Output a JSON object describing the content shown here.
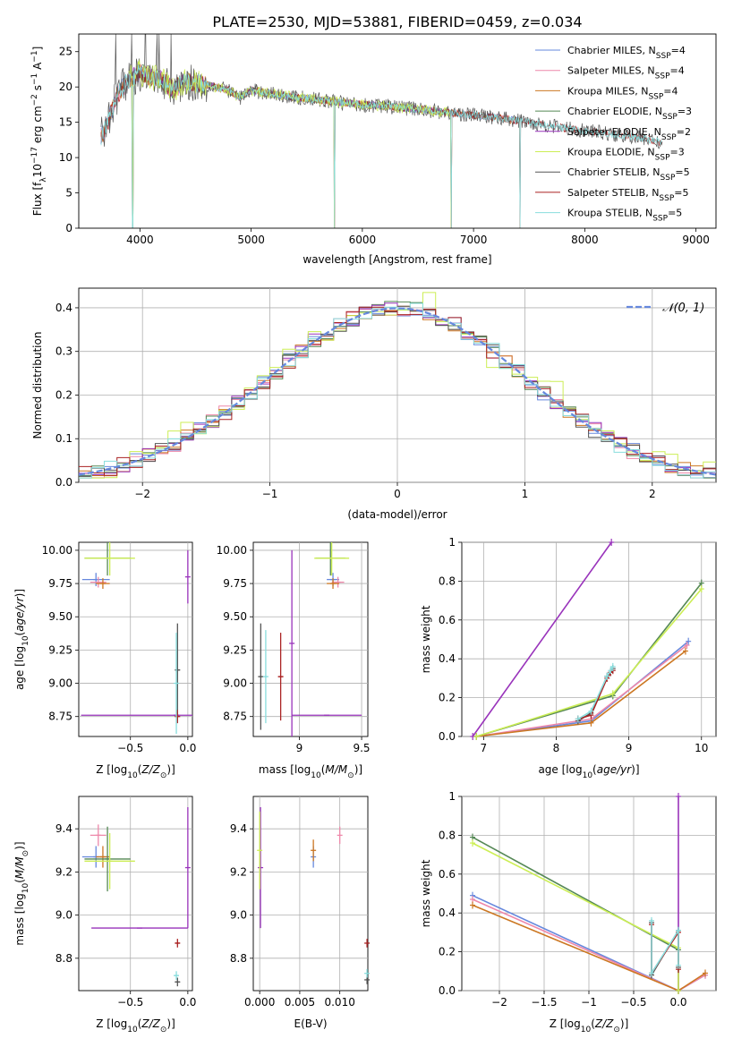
{
  "figure": {
    "title": "PLATE=2530, MJD=53881, FIBERID=0459, z=0.034"
  },
  "colors": {
    "Chabrier MILES": "#6688dd",
    "Salpeter MILES": "#ee88aa",
    "Kroupa MILES": "#cc7722",
    "Chabrier ELODIE": "#558855",
    "Salpeter ELODIE": "#9933bb",
    "Kroupa ELODIE": "#ccee55",
    "Chabrier STELIB": "#555555",
    "Salpeter STELIB": "#aa2222",
    "Kroupa STELIB": "#88dddd",
    "normal": "#6688dd"
  },
  "chart_data": [
    {
      "id": "spectrum",
      "type": "line",
      "title": "PLATE=2530, MJD=53881, FIBERID=0459, z=0.034",
      "xlabel": "wavelength [Angstrom, rest frame]",
      "ylabel": "Flux [f_λ 10^-17 erg cm^-2 s^-1 A^-1]",
      "xlim": [
        3450,
        9180
      ],
      "ylim": [
        0,
        27.5
      ],
      "xticks": [
        4000,
        5000,
        6000,
        7000,
        8000,
        9000
      ],
      "yticks": [
        0,
        5,
        10,
        15,
        20,
        25
      ],
      "grid": false,
      "legend_position": "top-right",
      "series": [
        {
          "name": "Chabrier MILES, N_SSP=4",
          "x_range": [
            3650,
            7400
          ]
        },
        {
          "name": "Salpeter MILES, N_SSP=4",
          "x_range": [
            3650,
            7400
          ]
        },
        {
          "name": "Kroupa MILES, N_SSP=4",
          "x_range": [
            3650,
            7420
          ]
        },
        {
          "name": "Chabrier ELODIE, N_SSP=3",
          "x_range": [
            3900,
            6800
          ]
        },
        {
          "name": "Salpeter ELODIE, N_SSP=2",
          "x_range": [
            3900,
            6800
          ]
        },
        {
          "name": "Kroupa ELODIE, N_SSP=3",
          "x_range": [
            3900,
            6800
          ]
        },
        {
          "name": "Chabrier STELIB, N_SSP=5",
          "x_range": [
            3650,
            8700
          ]
        },
        {
          "name": "Salpeter STELIB, N_SSP=5",
          "x_range": [
            3650,
            8700
          ]
        },
        {
          "name": "Kroupa STELIB, N_SSP=5",
          "x_range": [
            3650,
            8700
          ]
        }
      ],
      "continuum": {
        "x": [
          3650,
          3700,
          3800,
          3900,
          4000,
          4100,
          4200,
          4300,
          4400,
          4600,
          4800,
          4900,
          5000,
          5200,
          5400,
          5600,
          5800,
          6000,
          6200,
          6400,
          6600,
          6800,
          7000,
          7200,
          7400,
          7600,
          7800,
          8000,
          8200,
          8400,
          8600,
          8700
        ],
        "y": [
          13.0,
          14.5,
          19.0,
          21.0,
          22.0,
          21.5,
          21.0,
          19.5,
          20.8,
          20.3,
          19.5,
          18.5,
          19.5,
          19.0,
          18.5,
          18.2,
          17.8,
          17.5,
          17.3,
          17.0,
          16.7,
          16.3,
          16.0,
          15.7,
          15.2,
          14.8,
          14.2,
          13.8,
          13.4,
          13.0,
          12.5,
          12.0
        ]
      },
      "dips": [
        {
          "x": 3935,
          "y": 0.0
        },
        {
          "x": 5750,
          "y": 0.0
        },
        {
          "x": 6800,
          "y": 0.0
        },
        {
          "x": 7420,
          "y": 0.0
        }
      ]
    },
    {
      "id": "residuals",
      "type": "line",
      "xlabel": "(data-model)/error",
      "ylabel": "Normed distribution",
      "xlim": [
        -2.5,
        2.5
      ],
      "ylim": [
        0,
        0.445
      ],
      "xticks": [
        -2,
        -1,
        0,
        1,
        2
      ],
      "yticks": [
        0.0,
        0.1,
        0.2,
        0.3,
        0.4
      ],
      "grid": true,
      "legend_position": "top-right",
      "legend": "𝒩(0, 1)",
      "normal_curve": {
        "mu": 0,
        "sigma": 1
      },
      "bins": {
        "start": -2.5,
        "width": 0.1
      }
    },
    {
      "id": "age-vs-Z",
      "type": "scatter",
      "xlabel": "Z [log10(Z/Z⊙)]",
      "ylabel": "age [log10(age/yr)]",
      "xlim": [
        -0.95,
        0.04
      ],
      "ylim": [
        8.6,
        10.06
      ],
      "xticks": [
        -0.5,
        0.0
      ],
      "yticks": [
        8.75,
        9.0,
        9.25,
        9.5,
        9.75,
        10.0
      ],
      "grid": true,
      "points": [
        {
          "series": "Chabrier MILES",
          "x": -0.8,
          "y": 9.78,
          "xerr": 0.12,
          "yerr": 0.05
        },
        {
          "series": "Salpeter MILES",
          "x": -0.78,
          "y": 9.76,
          "xerr": 0.07,
          "yerr": 0.04
        },
        {
          "series": "Kroupa MILES",
          "x": -0.74,
          "y": 9.75,
          "xerr": 0.06,
          "yerr": 0.04
        },
        {
          "series": "Chabrier ELODIE",
          "x": -0.7,
          "y": 9.94,
          "xerr": 0.2,
          "yerr": 0.13
        },
        {
          "series": "Salpeter ELODIE",
          "x": -0.1,
          "y": 8.76,
          "xerr": 0.83,
          "yerr": 0.0
        },
        {
          "series": "Salpeter ELODIE",
          "x": 0.0,
          "y": 9.8,
          "xerr": 0.0,
          "yerr": 0.2
        },
        {
          "series": "Kroupa ELODIE",
          "x": -0.68,
          "y": 9.94,
          "xerr": 0.22,
          "yerr": 0.13
        },
        {
          "series": "Chabrier STELIB",
          "x": -0.09,
          "y": 9.1,
          "xerr": 0.02,
          "yerr": 0.35
        },
        {
          "series": "Salpeter STELIB",
          "x": -0.09,
          "y": 8.75,
          "xerr": 0.01,
          "yerr": 0.05
        },
        {
          "series": "Kroupa STELIB",
          "x": -0.1,
          "y": 9.0,
          "xerr": 0.01,
          "yerr": 0.38
        }
      ]
    },
    {
      "id": "age-vs-mass",
      "type": "scatter",
      "xlabel": "mass [log10(M/M⊙)]",
      "ylabel": "",
      "xlim": [
        8.63,
        9.55
      ],
      "ylim": [
        8.6,
        10.06
      ],
      "xticks": [
        9.0,
        9.5
      ],
      "yticks": [
        8.75,
        9.0,
        9.25,
        9.5,
        9.75,
        10.0
      ],
      "grid": true,
      "points": [
        {
          "series": "Chabrier MILES",
          "x": 9.27,
          "y": 9.78,
          "xerr": 0.05,
          "yerr": 0.05
        },
        {
          "series": "Salpeter MILES",
          "x": 9.31,
          "y": 9.76,
          "xerr": 0.05,
          "yerr": 0.04
        },
        {
          "series": "Kroupa MILES",
          "x": 9.27,
          "y": 9.75,
          "xerr": 0.05,
          "yerr": 0.04
        },
        {
          "series": "Chabrier ELODIE",
          "x": 9.25,
          "y": 9.94,
          "xerr": 0.12,
          "yerr": 0.13
        },
        {
          "series": "Salpeter ELODIE",
          "x": 8.94,
          "y": 9.3,
          "xerr": 0.0,
          "yerr": 0.7
        },
        {
          "series": "Salpeter ELODIE",
          "x": 9.22,
          "y": 8.76,
          "xerr": 0.28,
          "yerr": 0.0
        },
        {
          "series": "Kroupa ELODIE",
          "x": 9.26,
          "y": 9.94,
          "xerr": 0.14,
          "yerr": 0.13
        },
        {
          "series": "Chabrier STELIB",
          "x": 8.69,
          "y": 9.05,
          "xerr": 0.01,
          "yerr": 0.4
        },
        {
          "series": "Salpeter STELIB",
          "x": 8.85,
          "y": 9.05,
          "xerr": 0.02,
          "yerr": 0.33
        },
        {
          "series": "Kroupa STELIB",
          "x": 8.73,
          "y": 9.05,
          "xerr": 0.01,
          "yerr": 0.35
        }
      ]
    },
    {
      "id": "weight-vs-age",
      "type": "line",
      "xlabel": "age [log10(age/yr)]",
      "ylabel": "mass weight",
      "xlim": [
        6.7,
        10.2
      ],
      "ylim": [
        0,
        1.0
      ],
      "xticks": [
        7,
        8,
        9,
        10
      ],
      "yticks": [
        0.0,
        0.2,
        0.4,
        0.6,
        0.8,
        1.0
      ],
      "grid": true,
      "series": [
        {
          "name": "Chabrier MILES",
          "x": [
            6.9,
            8.48,
            9.82
          ],
          "y": [
            0.0,
            0.08,
            0.49
          ]
        },
        {
          "name": "Salpeter MILES",
          "x": [
            6.9,
            8.48,
            9.8
          ],
          "y": [
            0.0,
            0.09,
            0.47
          ]
        },
        {
          "name": "Kroupa MILES",
          "x": [
            6.9,
            8.48,
            9.78
          ],
          "y": [
            0.0,
            0.07,
            0.44
          ]
        },
        {
          "name": "Chabrier ELODIE",
          "x": [
            6.9,
            8.78,
            10.0
          ],
          "y": [
            0.0,
            0.21,
            0.79
          ]
        },
        {
          "name": "Salpeter ELODIE",
          "x": [
            6.85,
            8.76
          ],
          "y": [
            0.0,
            1.0
          ]
        },
        {
          "name": "Kroupa ELODIE",
          "x": [
            6.9,
            8.78,
            10.0
          ],
          "y": [
            0.0,
            0.22,
            0.76
          ]
        },
        {
          "name": "Chabrier STELIB",
          "x": [
            8.3,
            8.48,
            8.7,
            8.75,
            8.78
          ],
          "y": [
            0.08,
            0.12,
            0.31,
            0.33,
            0.35
          ]
        },
        {
          "name": "Salpeter STELIB",
          "x": [
            8.3,
            8.48,
            8.7,
            8.75,
            8.78
          ],
          "y": [
            0.09,
            0.11,
            0.3,
            0.33,
            0.34
          ]
        },
        {
          "name": "Kroupa STELIB",
          "x": [
            8.3,
            8.48,
            8.7,
            8.75,
            8.78
          ],
          "y": [
            0.09,
            0.13,
            0.31,
            0.34,
            0.36
          ]
        }
      ]
    },
    {
      "id": "mass-vs-Z",
      "type": "scatter",
      "xlabel": "Z [log10(Z/Z⊙)]",
      "ylabel": "mass [log10(M/M⊙)]",
      "xlim": [
        -0.95,
        0.04
      ],
      "ylim": [
        8.65,
        9.55
      ],
      "xticks": [
        -0.5,
        0.0
      ],
      "yticks": [
        8.8,
        9.0,
        9.2,
        9.4
      ],
      "grid": true,
      "points": [
        {
          "series": "Chabrier MILES",
          "x": -0.8,
          "y": 9.27,
          "xerr": 0.12,
          "yerr": 0.05
        },
        {
          "series": "Salpeter MILES",
          "x": -0.78,
          "y": 9.37,
          "xerr": 0.07,
          "yerr": 0.05
        },
        {
          "series": "Kroupa MILES",
          "x": -0.74,
          "y": 9.27,
          "xerr": 0.06,
          "yerr": 0.05
        },
        {
          "series": "Chabrier ELODIE",
          "x": -0.7,
          "y": 9.26,
          "xerr": 0.2,
          "yerr": 0.15
        },
        {
          "series": "Salpeter ELODIE",
          "x": -0.42,
          "y": 8.94,
          "xerr": 0.42,
          "yerr": 0.0
        },
        {
          "series": "Salpeter ELODIE",
          "x": 0.0,
          "y": 9.22,
          "xerr": 0.0,
          "yerr": 0.28
        },
        {
          "series": "Kroupa ELODIE",
          "x": -0.68,
          "y": 9.25,
          "xerr": 0.22,
          "yerr": 0.13
        },
        {
          "series": "Chabrier STELIB",
          "x": -0.09,
          "y": 8.69,
          "xerr": 0.02,
          "yerr": 0.02
        },
        {
          "series": "Salpeter STELIB",
          "x": -0.09,
          "y": 8.87,
          "xerr": 0.02,
          "yerr": 0.02
        },
        {
          "series": "Kroupa STELIB",
          "x": -0.1,
          "y": 8.72,
          "xerr": 0.02,
          "yerr": 0.02
        }
      ]
    },
    {
      "id": "mass-vs-ebv",
      "type": "scatter",
      "xlabel": "E(B-V)",
      "ylabel": "",
      "xlim": [
        -0.0008,
        0.0135
      ],
      "ylim": [
        8.65,
        9.55
      ],
      "xticks": [
        0.0,
        0.005,
        0.01
      ],
      "xticklabels": [
        "0.000",
        "0.005",
        "0.010"
      ],
      "yticks": [
        8.8,
        9.0,
        9.2,
        9.4
      ],
      "grid": true,
      "points": [
        {
          "series": "Chabrier MILES",
          "x": 0.0067,
          "y": 9.27,
          "xerr": 0.0,
          "yerr": 0.05
        },
        {
          "series": "Salpeter MILES",
          "x": 0.01,
          "y": 9.37,
          "xerr": 0.0,
          "yerr": 0.04
        },
        {
          "series": "Kroupa MILES",
          "x": 0.0067,
          "y": 9.3,
          "xerr": 0.0,
          "yerr": 0.05
        },
        {
          "series": "Salpeter ELODIE",
          "x": 0.0001,
          "y": 9.22,
          "xerr": 0.0,
          "yerr": 0.28
        },
        {
          "series": "Kroupa ELODIE",
          "x": 0.0,
          "y": 9.3,
          "xerr": 0.0,
          "yerr": 0.18
        },
        {
          "series": "Salpeter STELIB",
          "x": 0.0134,
          "y": 8.87,
          "xerr": 0.0,
          "yerr": 0.02
        },
        {
          "series": "Chabrier STELIB",
          "x": 0.0134,
          "y": 8.7,
          "xerr": 0.0,
          "yerr": 0.02
        },
        {
          "series": "Kroupa STELIB",
          "x": 0.0134,
          "y": 8.73,
          "xerr": 0.0,
          "yerr": 0.02
        }
      ]
    },
    {
      "id": "weight-vs-Z",
      "type": "line",
      "xlabel": "Z [log10(Z/Z⊙)]",
      "ylabel": "mass weight",
      "xlim": [
        -2.42,
        0.42
      ],
      "ylim": [
        0,
        1.0
      ],
      "xticks": [
        -2.0,
        -1.5,
        -1.0,
        -0.5,
        0.0
      ],
      "yticks": [
        0.0,
        0.2,
        0.4,
        0.6,
        0.8,
        1.0
      ],
      "grid": true,
      "series": [
        {
          "name": "Chabrier MILES",
          "x": [
            -2.3,
            0.0,
            0.3
          ],
          "y": [
            0.49,
            0.0,
            0.08
          ]
        },
        {
          "name": "Salpeter MILES",
          "x": [
            -2.3,
            0.0,
            0.3
          ],
          "y": [
            0.47,
            0.0,
            0.08
          ]
        },
        {
          "name": "Kroupa MILES",
          "x": [
            -2.3,
            0.0,
            0.3
          ],
          "y": [
            0.44,
            0.0,
            0.09
          ]
        },
        {
          "name": "Chabrier ELODIE",
          "x": [
            -2.3,
            0.0,
            0.0
          ],
          "y": [
            0.79,
            0.21,
            0.0
          ]
        },
        {
          "name": "Salpeter ELODIE",
          "x": [
            0.0,
            0.0
          ],
          "y": [
            0.0,
            1.0
          ]
        },
        {
          "name": "Kroupa ELODIE",
          "x": [
            -2.3,
            0.0,
            0.0
          ],
          "y": [
            0.76,
            0.22,
            0.0
          ]
        },
        {
          "name": "Chabrier STELIB",
          "x": [
            -0.3,
            -0.3,
            0.0,
            0.0
          ],
          "y": [
            0.35,
            0.08,
            0.31,
            0.12
          ]
        },
        {
          "name": "Salpeter STELIB",
          "x": [
            -0.3,
            -0.3,
            0.0,
            0.0
          ],
          "y": [
            0.34,
            0.09,
            0.3,
            0.11
          ]
        },
        {
          "name": "Kroupa STELIB",
          "x": [
            -0.3,
            -0.3,
            0.0,
            0.0
          ],
          "y": [
            0.36,
            0.09,
            0.31,
            0.13
          ]
        }
      ]
    }
  ]
}
